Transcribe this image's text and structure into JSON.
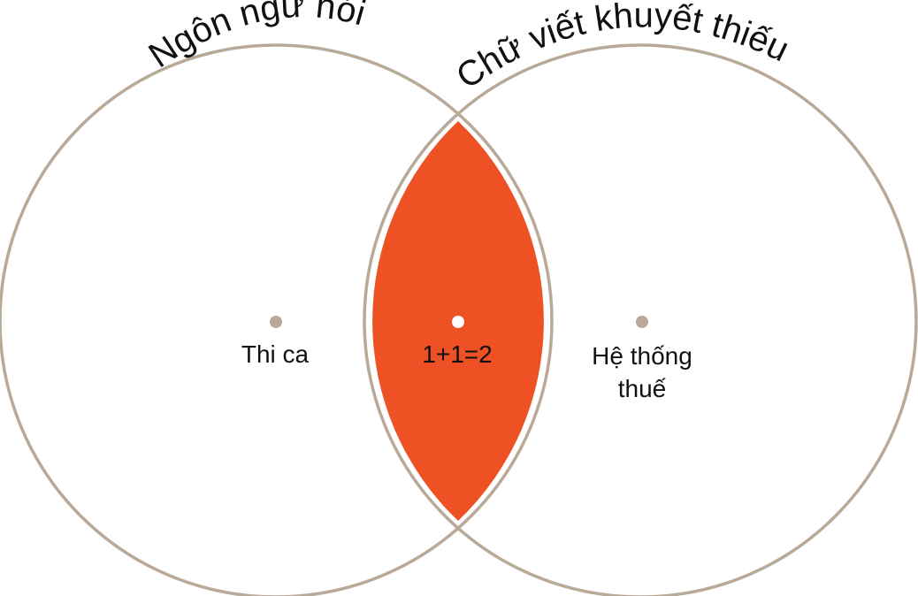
{
  "diagram": {
    "type": "venn",
    "colors": {
      "circle_stroke": "#b8a998",
      "intersection_fill": "#ee5224",
      "left_dot": "#b8a998",
      "right_dot": "#b8a998",
      "center_dot": "#ffffff"
    },
    "left_set": {
      "title": "Ngôn ngữ nói",
      "item": "Thi ca"
    },
    "right_set": {
      "title": "Chữ viết khuyết thiếu",
      "item_line1": "Hệ thống",
      "item_line2": "thuế"
    },
    "intersection": {
      "item": "1+1=2"
    }
  }
}
